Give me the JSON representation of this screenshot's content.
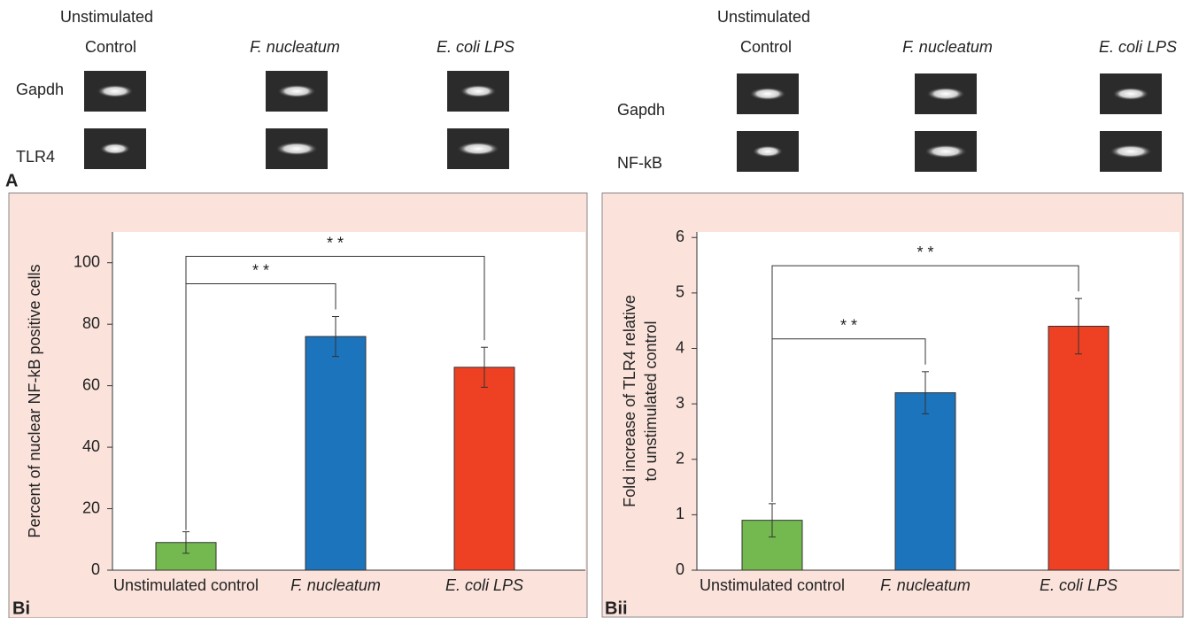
{
  "panel_a": {
    "label": "A",
    "groups": [
      {
        "header": "Unstimulated",
        "columns": [
          "Control",
          "F. nucleatum",
          "E. coli LPS"
        ],
        "rows": [
          "Gapdh",
          "TLR4"
        ]
      },
      {
        "header": "Unstimulated",
        "columns": [
          "Control",
          "F. nucleatum",
          "E. coli LPS"
        ],
        "rows": [
          "Gapdh",
          "NF-kB"
        ]
      }
    ]
  },
  "chart_data": [
    {
      "type": "bar",
      "panel_label": "Bi",
      "y_label": [
        "Percent of nuclear NF-kB positive cells"
      ],
      "categories": [
        "Unstimulated control",
        "F. nucleatum",
        "E. coli LPS"
      ],
      "values": [
        9,
        76,
        66
      ],
      "errors": [
        3.5,
        6.5,
        6.5
      ],
      "colors": [
        "#74b94f",
        "#1c74bc",
        "#ee4123"
      ],
      "ylim": [
        0,
        110
      ],
      "yticks": [
        0,
        20,
        40,
        60,
        80,
        100
      ],
      "annotations": [
        {
          "text": "* *",
          "from": 0,
          "to": 1
        },
        {
          "text": "* *",
          "from": 0,
          "to": 2
        }
      ]
    },
    {
      "type": "bar",
      "panel_label": "Bii",
      "y_label": [
        "Fold increase of TLR4 relative",
        "to unstimulated control"
      ],
      "categories": [
        "Unstimulated control",
        "F. nucleatum",
        "E. coli LPS"
      ],
      "values": [
        0.9,
        3.2,
        4.4
      ],
      "errors": [
        0.3,
        0.38,
        0.5
      ],
      "colors": [
        "#74b94f",
        "#1c74bc",
        "#ee4123"
      ],
      "ylim": [
        0,
        6.1
      ],
      "yticks": [
        0,
        1,
        2,
        3,
        4,
        5,
        6
      ],
      "annotations": [
        {
          "text": "* *",
          "from": 0,
          "to": 1
        },
        {
          "text": "* *",
          "from": 0,
          "to": 2
        }
      ]
    }
  ]
}
